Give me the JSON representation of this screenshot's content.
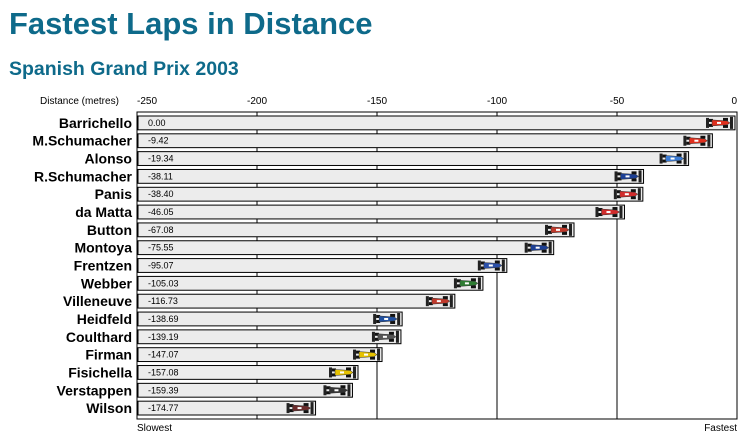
{
  "title": "Fastest Laps in Distance",
  "subtitle": "Spanish Grand Prix 2003",
  "chart_data": {
    "type": "bar",
    "orientation": "horizontal",
    "xlabel": "Distance (metres)",
    "xlim": [
      -250,
      0
    ],
    "xticks": [
      "-250",
      "-200",
      "-150",
      "-100",
      "-50",
      "0"
    ],
    "slowest_label": "Slowest",
    "fastest_label": "Fastest",
    "bars": [
      {
        "driver": "Barrichello",
        "value": 0.0,
        "label": "0.00",
        "car_color": "#e0301e"
      },
      {
        "driver": "M.Schumacher",
        "value": -9.42,
        "label": "-9.42",
        "car_color": "#e0301e"
      },
      {
        "driver": "Alonso",
        "value": -19.34,
        "label": "-19.34",
        "car_color": "#3a7bd5"
      },
      {
        "driver": "R.Schumacher",
        "value": -38.11,
        "label": "-38.11",
        "car_color": "#1c3f94"
      },
      {
        "driver": "Panis",
        "value": -38.4,
        "label": "-38.40",
        "car_color": "#d12c2c"
      },
      {
        "driver": "da Matta",
        "value": -46.05,
        "label": "-46.05",
        "car_color": "#d12c2c"
      },
      {
        "driver": "Button",
        "value": -67.08,
        "label": "-67.08",
        "car_color": "#c0392b"
      },
      {
        "driver": "Montoya",
        "value": -75.55,
        "label": "-75.55",
        "car_color": "#1c3f94"
      },
      {
        "driver": "Frentzen",
        "value": -95.07,
        "label": "-95.07",
        "car_color": "#2a4fa8"
      },
      {
        "driver": "Webber",
        "value": -105.03,
        "label": "-105.03",
        "car_color": "#2e7d32"
      },
      {
        "driver": "Villeneuve",
        "value": -116.73,
        "label": "-116.73",
        "car_color": "#c0392b"
      },
      {
        "driver": "Heidfeld",
        "value": -138.69,
        "label": "-138.69",
        "car_color": "#1f4fa0"
      },
      {
        "driver": "Coulthard",
        "value": -139.19,
        "label": "-139.19",
        "car_color": "#555555"
      },
      {
        "driver": "Firman",
        "value": -147.07,
        "label": "-147.07",
        "car_color": "#e6c200"
      },
      {
        "driver": "Fisichella",
        "value": -157.08,
        "label": "-157.08",
        "car_color": "#e6c200"
      },
      {
        "driver": "Verstappen",
        "value": -159.39,
        "label": "-159.39",
        "car_color": "#333333"
      },
      {
        "driver": "Wilson",
        "value": -174.77,
        "label": "-174.77",
        "car_color": "#6a2a2a"
      }
    ],
    "grid": true,
    "bar_fill": "#ececec",
    "title_color": "#0e6a8a"
  }
}
